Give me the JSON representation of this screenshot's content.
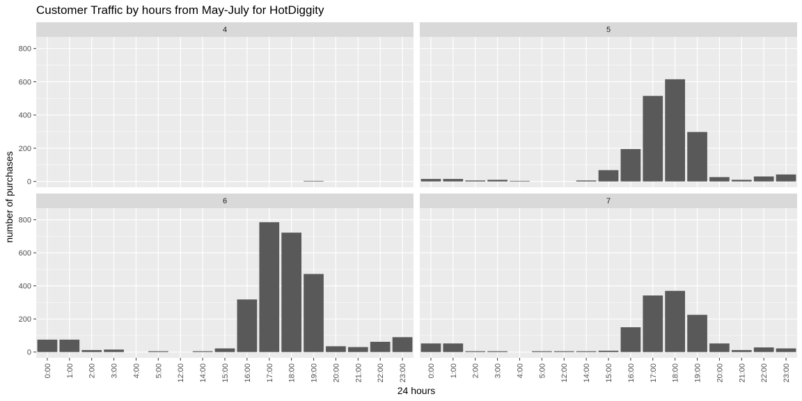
{
  "chart_data": {
    "type": "bar",
    "title": "Customer Traffic by hours from May-July for HotDiggity",
    "xlabel": "24 hours",
    "ylabel": "number of purchases",
    "ylim": [
      -35,
      870
    ],
    "y_ticks": [
      0,
      200,
      400,
      600,
      800
    ],
    "categories": [
      "0:00",
      "1:00",
      "2:00",
      "3:00",
      "4:00",
      "5:00",
      "12:00",
      "14:00",
      "15:00",
      "16:00",
      "17:00",
      "18:00",
      "19:00",
      "20:00",
      "21:00",
      "22:00",
      "23:00"
    ],
    "facet_layout": "2x2 grid, shared axes",
    "grid": true,
    "panels": [
      {
        "label": "4",
        "values": [
          0,
          0,
          0,
          0,
          0,
          0,
          0,
          0,
          0,
          0,
          0,
          0,
          2,
          0,
          0,
          0,
          0
        ]
      },
      {
        "label": "5",
        "values": [
          15,
          15,
          6,
          10,
          2,
          0,
          0,
          6,
          68,
          195,
          515,
          615,
          298,
          26,
          10,
          30,
          42
        ]
      },
      {
        "label": "6",
        "values": [
          75,
          75,
          12,
          15,
          0,
          5,
          0,
          5,
          22,
          318,
          785,
          722,
          472,
          35,
          30,
          62,
          90
        ]
      },
      {
        "label": "7",
        "values": [
          52,
          52,
          5,
          5,
          0,
          5,
          5,
          5,
          8,
          150,
          342,
          370,
          225,
          52,
          12,
          28,
          22
        ]
      }
    ],
    "colors": {
      "bar": "#595959",
      "panel_bg": "#ebebeb",
      "strip_bg": "#d9d9d9",
      "grid": "#ffffff"
    }
  }
}
